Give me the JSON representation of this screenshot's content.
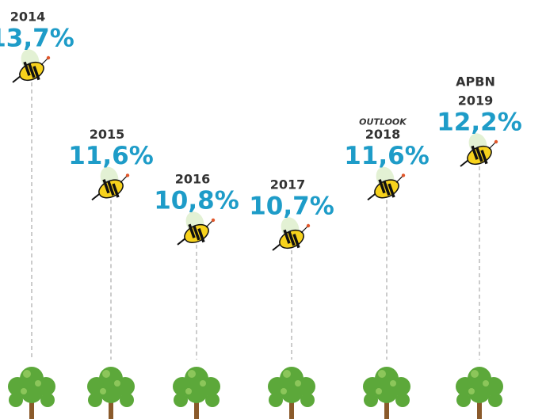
{
  "chart_data": {
    "type": "pictograph",
    "categories": [
      "2014",
      "2015",
      "2016",
      "2017",
      "2018",
      "2019"
    ],
    "prefixes": [
      null,
      null,
      null,
      null,
      "OUTLOOK",
      "APBN"
    ],
    "values": [
      13.7,
      11.6,
      10.8,
      10.7,
      11.6,
      12.2
    ],
    "value_labels": [
      "13,7%",
      "11,6%",
      "10,8%",
      "10,7%",
      "11,6%",
      "12,2%"
    ],
    "color": "#1e9cc8"
  }
}
